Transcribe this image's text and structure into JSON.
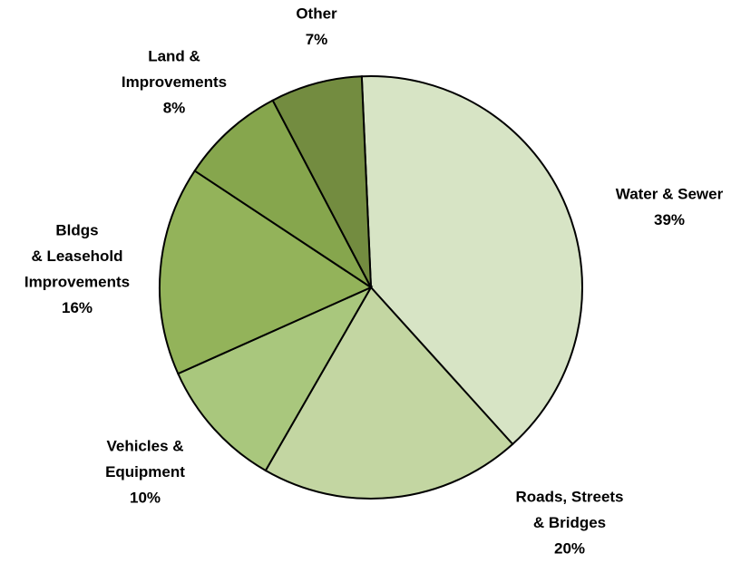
{
  "chart_data": {
    "type": "pie",
    "categories": [
      [
        "Water  & Sewer"
      ],
      [
        "Roads, Streets",
        "& Bridges"
      ],
      [
        "Vehicles &",
        "Equipment"
      ],
      [
        "Bldgs",
        "& Leasehold",
        "Improvements"
      ],
      [
        "Land &",
        "Improvements"
      ],
      [
        "Other"
      ]
    ],
    "values": [
      39,
      20,
      10,
      16,
      8,
      7
    ],
    "value_labels": [
      "39%",
      "20%",
      "10%",
      "16%",
      "8%",
      "7%"
    ],
    "colors": [
      "#d7e4c5",
      "#c3d6a2",
      "#a9c77d",
      "#93b35a",
      "#86a64d",
      "#738c40"
    ]
  }
}
